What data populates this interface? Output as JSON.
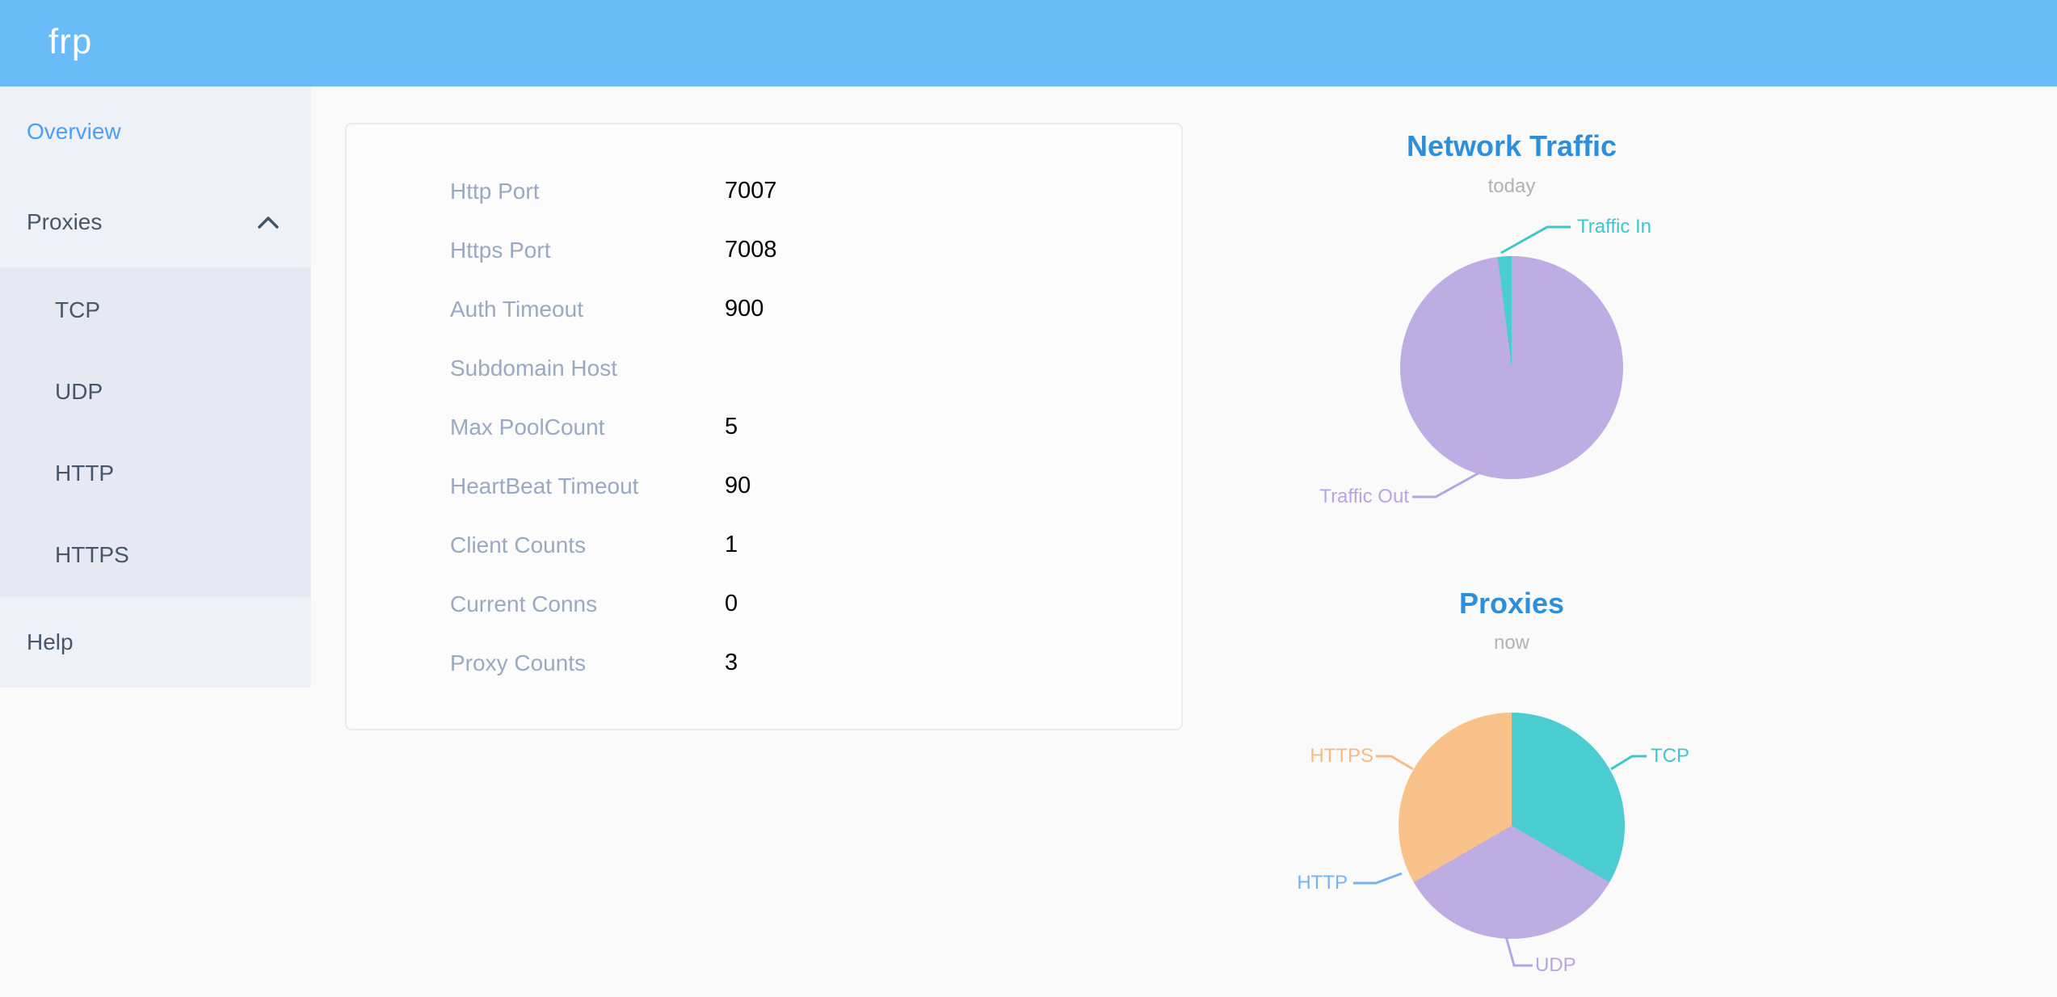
{
  "header": {
    "logo": "frp"
  },
  "colors": {
    "header_bg": "#69bcf8",
    "sidebar_bg": "#eef1f7",
    "submenu_bg": "#e6e9f2",
    "active_menu_item": "#4c9ef8",
    "menu_text": "#475669",
    "card_label": "#9aa9bf",
    "chart_title_blue": "#2d8fdb"
  },
  "sidebar": {
    "items": [
      {
        "label": "Overview",
        "active": true
      },
      {
        "label": "Proxies",
        "expanded": true,
        "children": [
          "TCP",
          "UDP",
          "HTTP",
          "HTTPS"
        ]
      },
      {
        "label": "Help"
      }
    ]
  },
  "overview_card": {
    "rows": [
      {
        "label": "Http Port",
        "value": "7007"
      },
      {
        "label": "Https Port",
        "value": "7008"
      },
      {
        "label": "Auth Timeout",
        "value": "900"
      },
      {
        "label": "Subdomain Host",
        "value": ""
      },
      {
        "label": "Max PoolCount",
        "value": "5"
      },
      {
        "label": "HeartBeat Timeout",
        "value": "90"
      },
      {
        "label": "Client Counts",
        "value": "1"
      },
      {
        "label": "Current Conns",
        "value": "0"
      },
      {
        "label": "Proxy Counts",
        "value": "3"
      }
    ]
  },
  "chart_data": [
    {
      "type": "pie",
      "title": "Network Traffic",
      "subtitle": "today",
      "note": "values are percentages estimated from slice angles; no numbers shown on screen",
      "legend_position": "none",
      "slices": [
        {
          "name": "Traffic Out",
          "value": 98,
          "color": "#bdade3",
          "label_color": "#b6a5e0"
        },
        {
          "name": "Traffic In",
          "value": 2,
          "color": "#4bccd1",
          "label_color": "#3ec7ca"
        }
      ]
    },
    {
      "type": "pie",
      "title": "Proxies",
      "subtitle": "now",
      "note": "proxy counts per type; HTTP slice has zero width (0 proxies), total = 3",
      "legend_position": "none",
      "slices": [
        {
          "name": "TCP",
          "value": 1,
          "color": "#4bccd1",
          "label_color": "#3ec7ca"
        },
        {
          "name": "UDP",
          "value": 1,
          "color": "#bdade3",
          "label_color": "#b6a5e0"
        },
        {
          "name": "HTTP",
          "value": 0,
          "color": "#76b4f1",
          "label_color": "#76b4f1"
        },
        {
          "name": "HTTPS",
          "value": 1,
          "color": "#f9c28a",
          "label_color": "#f6bb84"
        }
      ]
    }
  ]
}
